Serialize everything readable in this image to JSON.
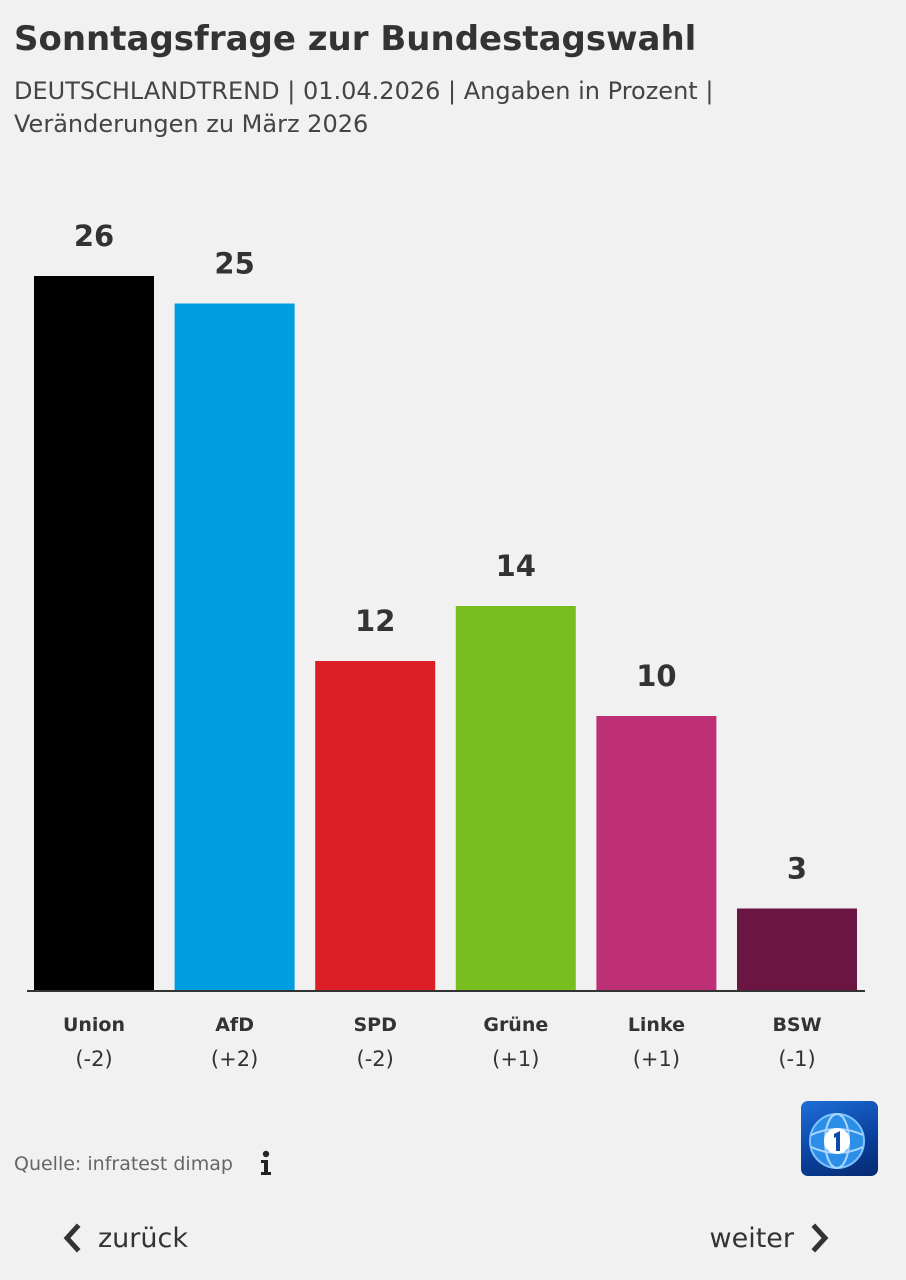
{
  "title": "Sonntagsfrage zur Bundestagswahl",
  "subtitle": {
    "line1": "DEUTSCHLANDTREND | 01.04.2026 | Angaben in Prozent |",
    "line2": "Veränderungen zu März 2026"
  },
  "chart_data": {
    "type": "bar",
    "categories": [
      "Union",
      "AfD",
      "SPD",
      "Grüne",
      "Linke",
      "BSW"
    ],
    "values": [
      26,
      25,
      12,
      14,
      10,
      3
    ],
    "changes": [
      "(-2)",
      "(+2)",
      "(-2)",
      "(+1)",
      "(+1)",
      "(-1)"
    ],
    "colors": [
      "#000000",
      "#009ee0",
      "#dc1f26",
      "#78be1e",
      "#be3075",
      "#6b1642"
    ],
    "title": "Sonntagsfrage zur Bundestagswahl",
    "xlabel": "",
    "ylabel": "",
    "ylim": [
      0,
      26
    ],
    "grid": false,
    "legend": "none"
  },
  "source": "Quelle: infratest dimap",
  "icons": {
    "info": "info-icon",
    "logo": "tagesschau-logo",
    "back": "chevron-left-icon",
    "next": "chevron-right-icon"
  },
  "nav": {
    "back_label": "zurück",
    "next_label": "weiter"
  }
}
